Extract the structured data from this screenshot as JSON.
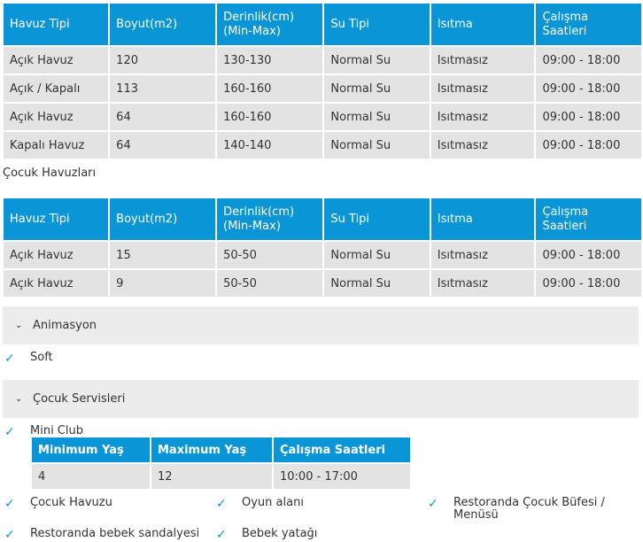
{
  "pool_headers": [
    "Havuz Tipi",
    "Boyut(m2)",
    "Derinlik(cm)",
    "(Min-Max)",
    "Su Tipi",
    "Isıtma",
    "Çalışma Saatleri"
  ],
  "main_pools": [
    [
      "Açık Havuz",
      "120",
      "130-130",
      "Normal Su",
      "Isıtmasız",
      "09:00 - 18:00"
    ],
    [
      "Açık / Kapalı",
      "113",
      "160-160",
      "Normal Su",
      "Isıtmasız",
      "09:00 - 18:00"
    ],
    [
      "Açık Havuz",
      "64",
      "160-160",
      "Normal Su",
      "Isıtmasız",
      "09:00 - 18:00"
    ],
    [
      "Kapalı Havuz",
      "64",
      "140-140",
      "Normal Su",
      "Isıtmasız",
      "09:00 - 18:00"
    ]
  ],
  "kids_pools_title": "Çocuk Havuzları",
  "kids_pools": [
    [
      "Açık Havuz",
      "15",
      "50-50",
      "Normal Su",
      "Isıtmasız",
      "09:00 - 18:00"
    ],
    [
      "Açık Havuz",
      "9",
      "50-50",
      "Normal Su",
      "Isıtmasız",
      "09:00 - 18:00"
    ]
  ],
  "sections": {
    "animation": {
      "title": "Animasyon",
      "items": [
        "Soft"
      ]
    },
    "kids_services": {
      "title": "Çocuk Servisleri",
      "mini_club": "Mini Club",
      "club_headers": [
        "Minimum Yaş",
        "Maximum Yaş",
        "Çalışma Saatleri"
      ],
      "club_row": [
        "4",
        "12",
        "10:00 - 17:00"
      ],
      "items": [
        "Çocuk Havuzu",
        "Oyun alanı",
        "Restoranda Çocuk Büfesi /",
        "Menüsü",
        "Restoranda bebek sandalyesi",
        "Bebek yatağı"
      ]
    }
  },
  "icons": {
    "check": "check-icon",
    "chevron": "chevron-down-icon"
  },
  "colors": {
    "header_blue": "#0a96d6",
    "row_gray": "#e3e3e3",
    "accordion_gray": "#ececec"
  }
}
